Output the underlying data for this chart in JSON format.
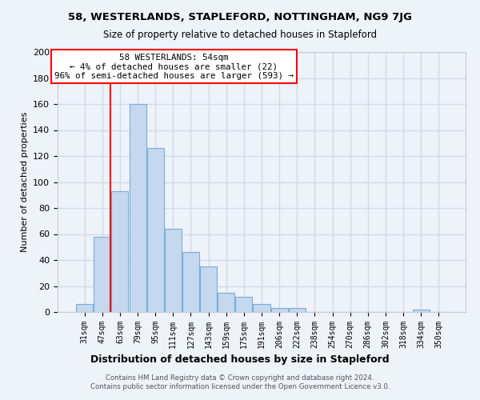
{
  "title": "58, WESTERLANDS, STAPLEFORD, NOTTINGHAM, NG9 7JG",
  "subtitle": "Size of property relative to detached houses in Stapleford",
  "xlabel": "Distribution of detached houses by size in Stapleford",
  "ylabel": "Number of detached properties",
  "bar_color": "#c5d8f0",
  "bar_edge_color": "#7aadd4",
  "categories": [
    "31sqm",
    "47sqm",
    "63sqm",
    "79sqm",
    "95sqm",
    "111sqm",
    "127sqm",
    "143sqm",
    "159sqm",
    "175sqm",
    "191sqm",
    "206sqm",
    "222sqm",
    "238sqm",
    "254sqm",
    "270sqm",
    "286sqm",
    "302sqm",
    "318sqm",
    "334sqm",
    "350sqm"
  ],
  "values": [
    6,
    58,
    93,
    160,
    126,
    64,
    46,
    35,
    15,
    12,
    6,
    3,
    3,
    0,
    0,
    0,
    0,
    0,
    0,
    2,
    0
  ],
  "ylim": [
    0,
    200
  ],
  "yticks": [
    0,
    20,
    40,
    60,
    80,
    100,
    120,
    140,
    160,
    180,
    200
  ],
  "annotation_line1": "58 WESTERLANDS: 54sqm",
  "annotation_line2": "← 4% of detached houses are smaller (22)",
  "annotation_line3": "96% of semi-detached houses are larger (593) →",
  "footer_line1": "Contains HM Land Registry data © Crown copyright and database right 2024.",
  "footer_line2": "Contains public sector information licensed under the Open Government Licence v3.0.",
  "background_color": "#eef2f9",
  "grid_color": "#d0daea"
}
